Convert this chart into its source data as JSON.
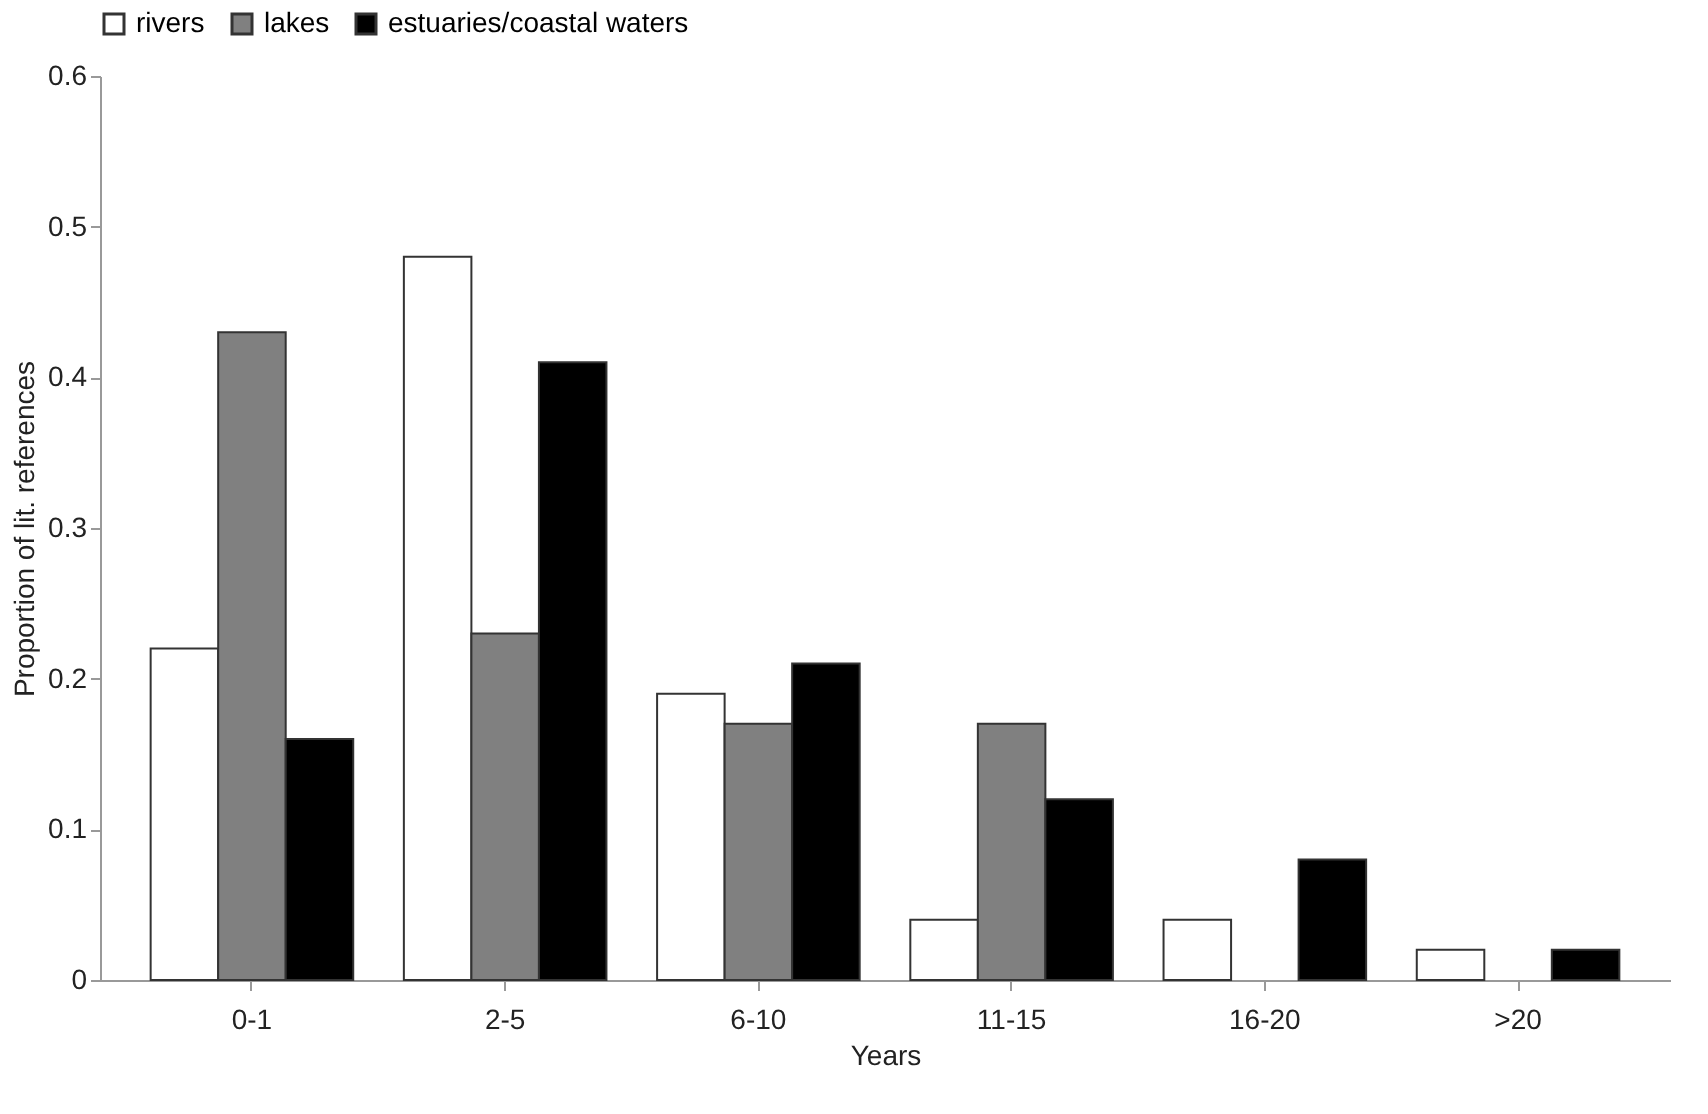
{
  "chart_data": {
    "type": "bar",
    "xlabel": "Years",
    "ylabel": "Proportion of lit. references",
    "categories": [
      "0-1",
      "2-5",
      "6-10",
      "11-15",
      "16-20",
      ">20"
    ],
    "series": [
      {
        "name": "rivers",
        "color": "#ffffff",
        "values": [
          0.22,
          0.48,
          0.19,
          0.04,
          0.04,
          0.02
        ]
      },
      {
        "name": "lakes",
        "color": "#808080",
        "values": [
          0.43,
          0.23,
          0.17,
          0.17,
          null,
          null
        ]
      },
      {
        "name": "estuaries/coastal waters",
        "color": "#000000",
        "values": [
          0.16,
          0.41,
          0.21,
          0.12,
          0.08,
          0.02
        ]
      }
    ],
    "ylim": [
      0,
      0.6
    ],
    "yticks": [
      0,
      0.1,
      0.2,
      0.3,
      0.4,
      0.5,
      0.6
    ],
    "grid": false,
    "legend": "top"
  }
}
